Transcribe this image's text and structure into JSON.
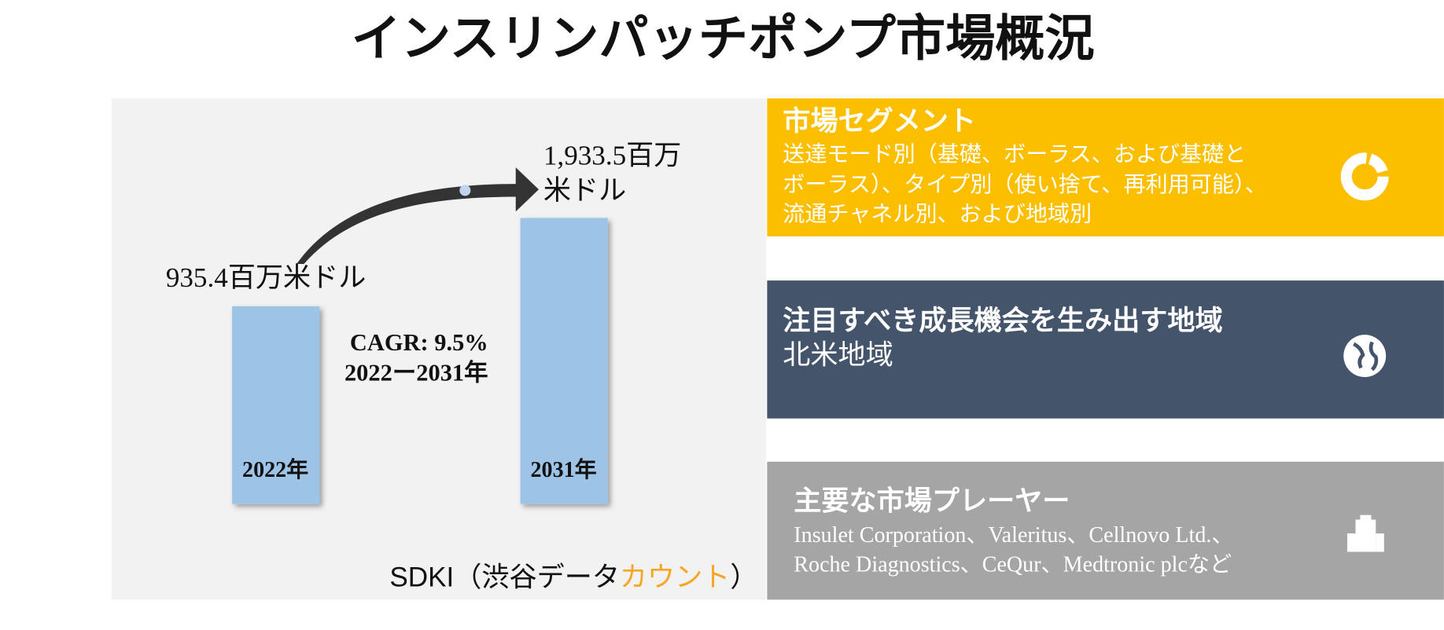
{
  "title": "インスリンパッチポンプ市場概況",
  "chart": {
    "start_value": "935.4百万米ドル",
    "end_value": [
      "1,933.5百万",
      "米ドル"
    ],
    "cagr": [
      "CAGR: 9.5%",
      "2022ー2031年"
    ],
    "bars": [
      "2022年",
      "2031年"
    ],
    "source": [
      "SDKI（渋谷データ",
      "カウント",
      "）"
    ]
  },
  "panels": [
    {
      "title": "市場セグメント",
      "body": [
        "送達モード別（基礎、ボーラス、および基礎と",
        "ボーラス）、タイプ別（使い捨て、再利用可能）、",
        "流通チャネル別、および地域別"
      ]
    },
    {
      "title": "注目すべき成長機会を生み出す地域",
      "body": [
        "北米地域"
      ]
    },
    {
      "title": "主要な市場プレーヤー",
      "body": [
        "Insulet Corporation、Valeritus、Cellnovo Ltd.、",
        "Roche Diagnostics、CeQur、Medtronic plcなど"
      ]
    }
  ]
}
